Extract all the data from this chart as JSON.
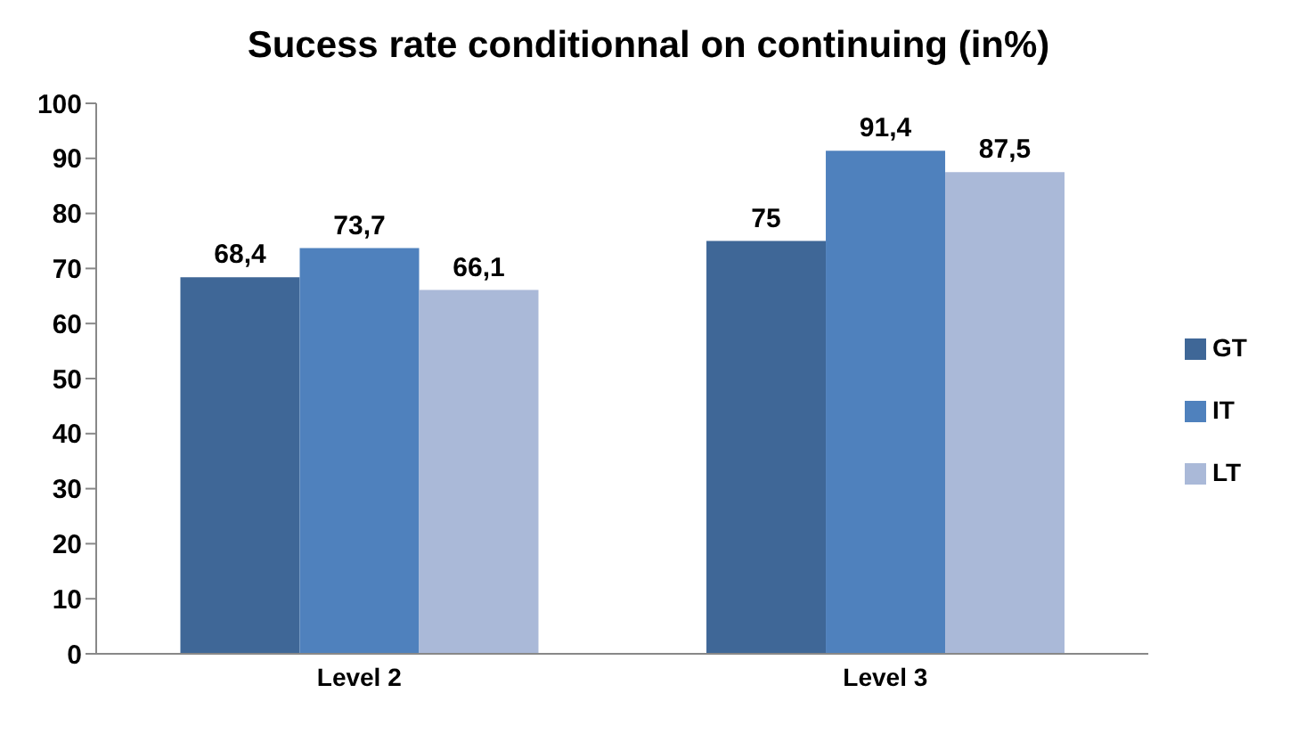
{
  "chart_data": {
    "type": "bar",
    "title": "Sucess rate conditionnal on continuing (in%)",
    "categories": [
      "Level 2",
      "Level 3"
    ],
    "series": [
      {
        "name": "GT",
        "color": "#3f6797",
        "values": [
          68.4,
          75
        ],
        "value_labels": [
          "68,4",
          "75"
        ]
      },
      {
        "name": "IT",
        "color": "#4f81bd",
        "values": [
          73.7,
          91.4
        ],
        "value_labels": [
          "73,7",
          "91,4"
        ]
      },
      {
        "name": "LT",
        "color": "#aab9d8",
        "values": [
          66.1,
          87.5
        ],
        "value_labels": [
          "66,1",
          "87,5"
        ]
      }
    ],
    "ylim": [
      0,
      100
    ],
    "yticks": [
      0,
      10,
      20,
      30,
      40,
      50,
      60,
      70,
      80,
      90,
      100
    ],
    "grid": false,
    "legend": "right"
  }
}
